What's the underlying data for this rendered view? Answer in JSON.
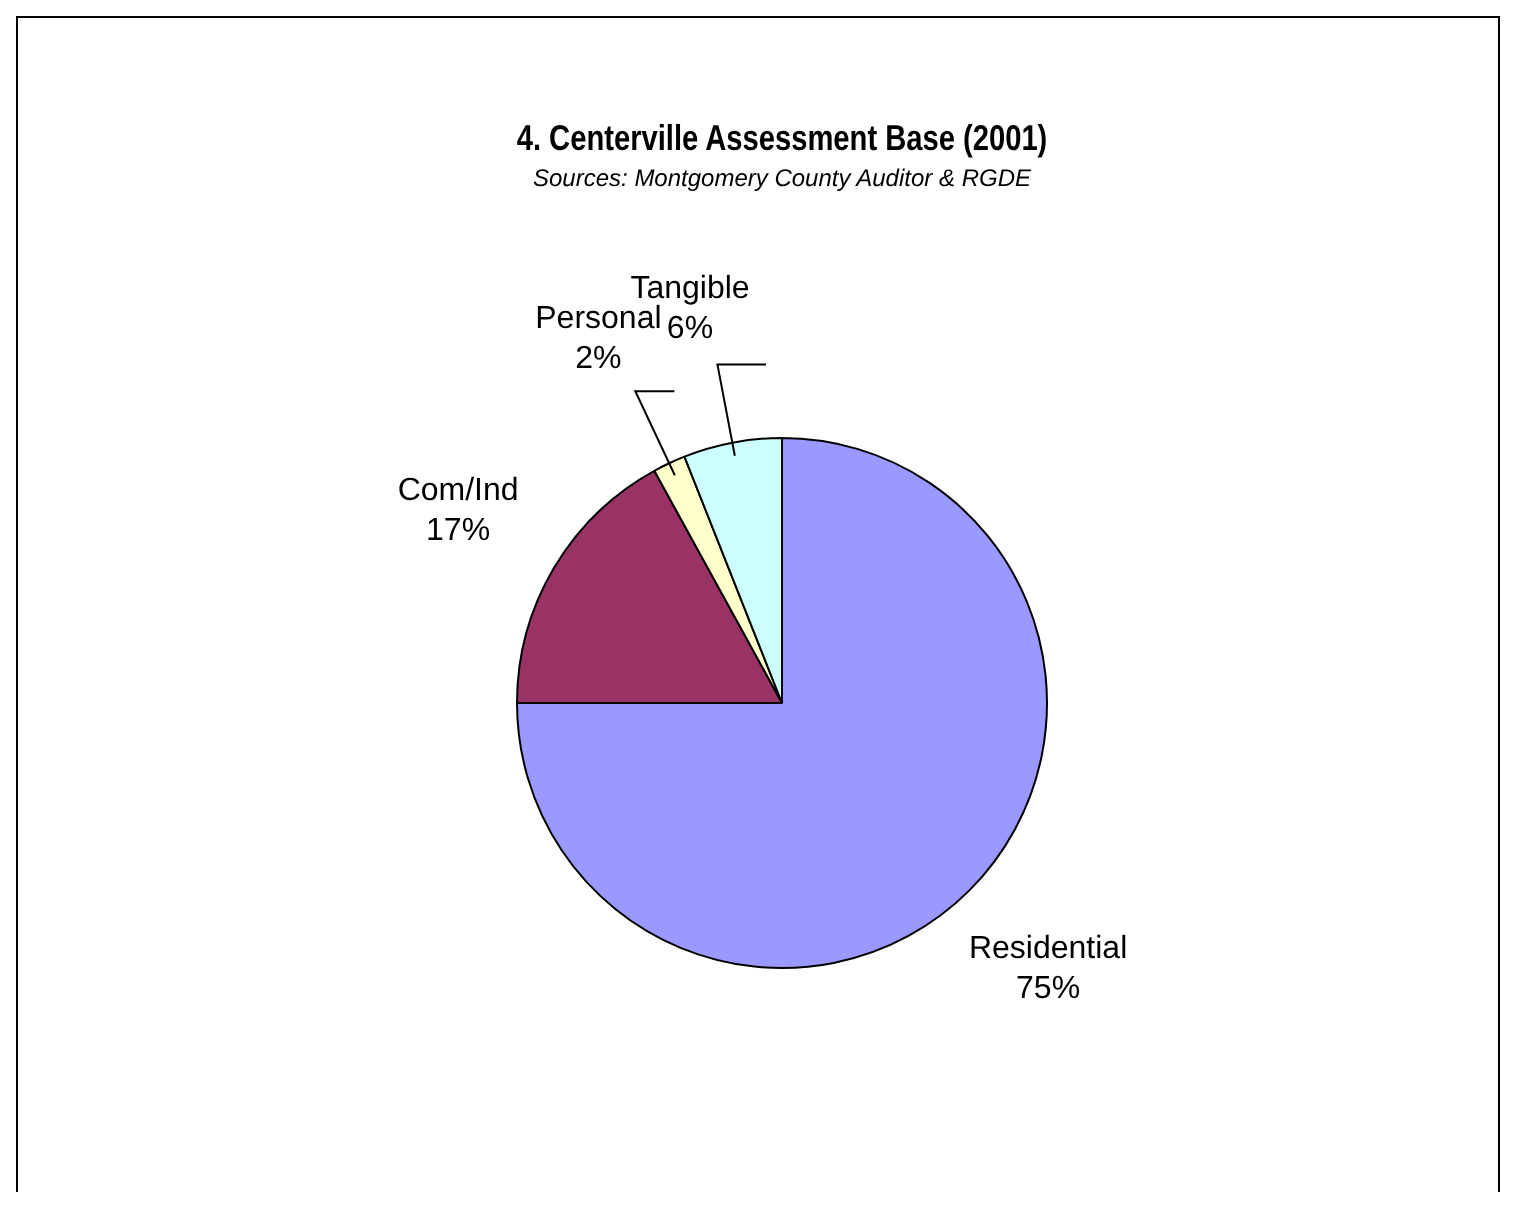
{
  "chart_data": {
    "type": "pie",
    "title": "4. Centerville Assessment Base (2001)",
    "subtitle": "Sources: Montgomery County Auditor & RGDE",
    "categories": [
      "Residential",
      "Com/Ind",
      "Personal",
      "Tangible"
    ],
    "values": [
      75,
      17,
      2,
      6
    ],
    "colors": [
      "#9999ff",
      "#993366",
      "#ffffcc",
      "#ccffff"
    ],
    "value_labels": [
      "75%",
      "17%",
      "2%",
      "6%"
    ],
    "legend": false
  }
}
